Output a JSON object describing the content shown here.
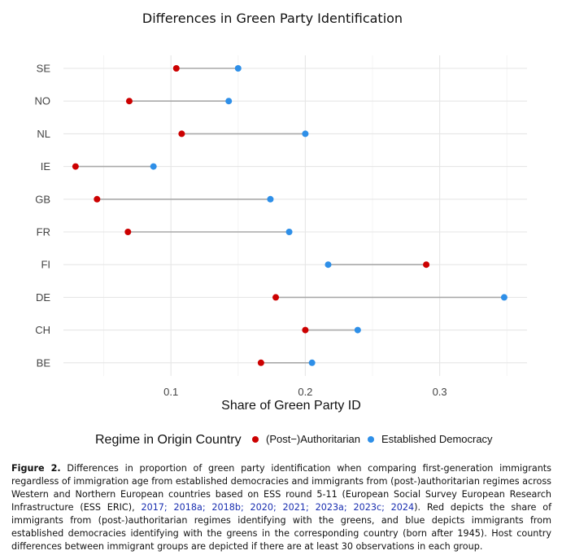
{
  "chart_data": {
    "type": "dumbbell",
    "title": "Differences in Green Party Identification",
    "xlabel": "Share of Green Party ID",
    "ylabel": "",
    "xlim": [
      0.02,
      0.365
    ],
    "xticks": [
      0.1,
      0.2,
      0.3
    ],
    "xtick_labels": [
      "0.1",
      "0.2",
      "0.3"
    ],
    "grid": true,
    "categories": [
      "SE",
      "NO",
      "NL",
      "IE",
      "GB",
      "FR",
      "FI",
      "DE",
      "CH",
      "BE"
    ],
    "series": [
      {
        "name": "(Post−)Authoritarian",
        "color": "#cc0000",
        "values": [
          0.104,
          0.069,
          0.108,
          0.029,
          0.045,
          0.068,
          0.29,
          0.178,
          0.2,
          0.167
        ]
      },
      {
        "name": "Established Democracy",
        "color": "#2e8fe8",
        "values": [
          0.15,
          0.143,
          0.2,
          0.087,
          0.174,
          0.188,
          0.217,
          0.348,
          0.239,
          0.205
        ]
      }
    ],
    "legend": {
      "title": "Regime in Origin Country",
      "position": "bottom"
    }
  },
  "caption": {
    "label": "Figure 2.",
    "text_before_refs": " Differences in proportion of green party identification when comparing first-generation immigrants regardless of immigration age from established democracies and immigrants from (post-)authoritarian regimes across Western and Northern European countries based on ESS round 5-11 (European Social Survey European Research Infrastructure (ESS ERIC), ",
    "refs": "2017; 2018a; 2018b; 2020; 2021; 2023a; 2023c; 2024",
    "text_after_refs": "). Red depicts the share of immigrants from (post-)authoritarian regimes identifying with the greens, and blue depicts immigrants from established democracies identifying with the greens in the corresponding country (born after 1945). Host country differences between immigrant groups are depicted if there are at least 30 observations in each group."
  }
}
